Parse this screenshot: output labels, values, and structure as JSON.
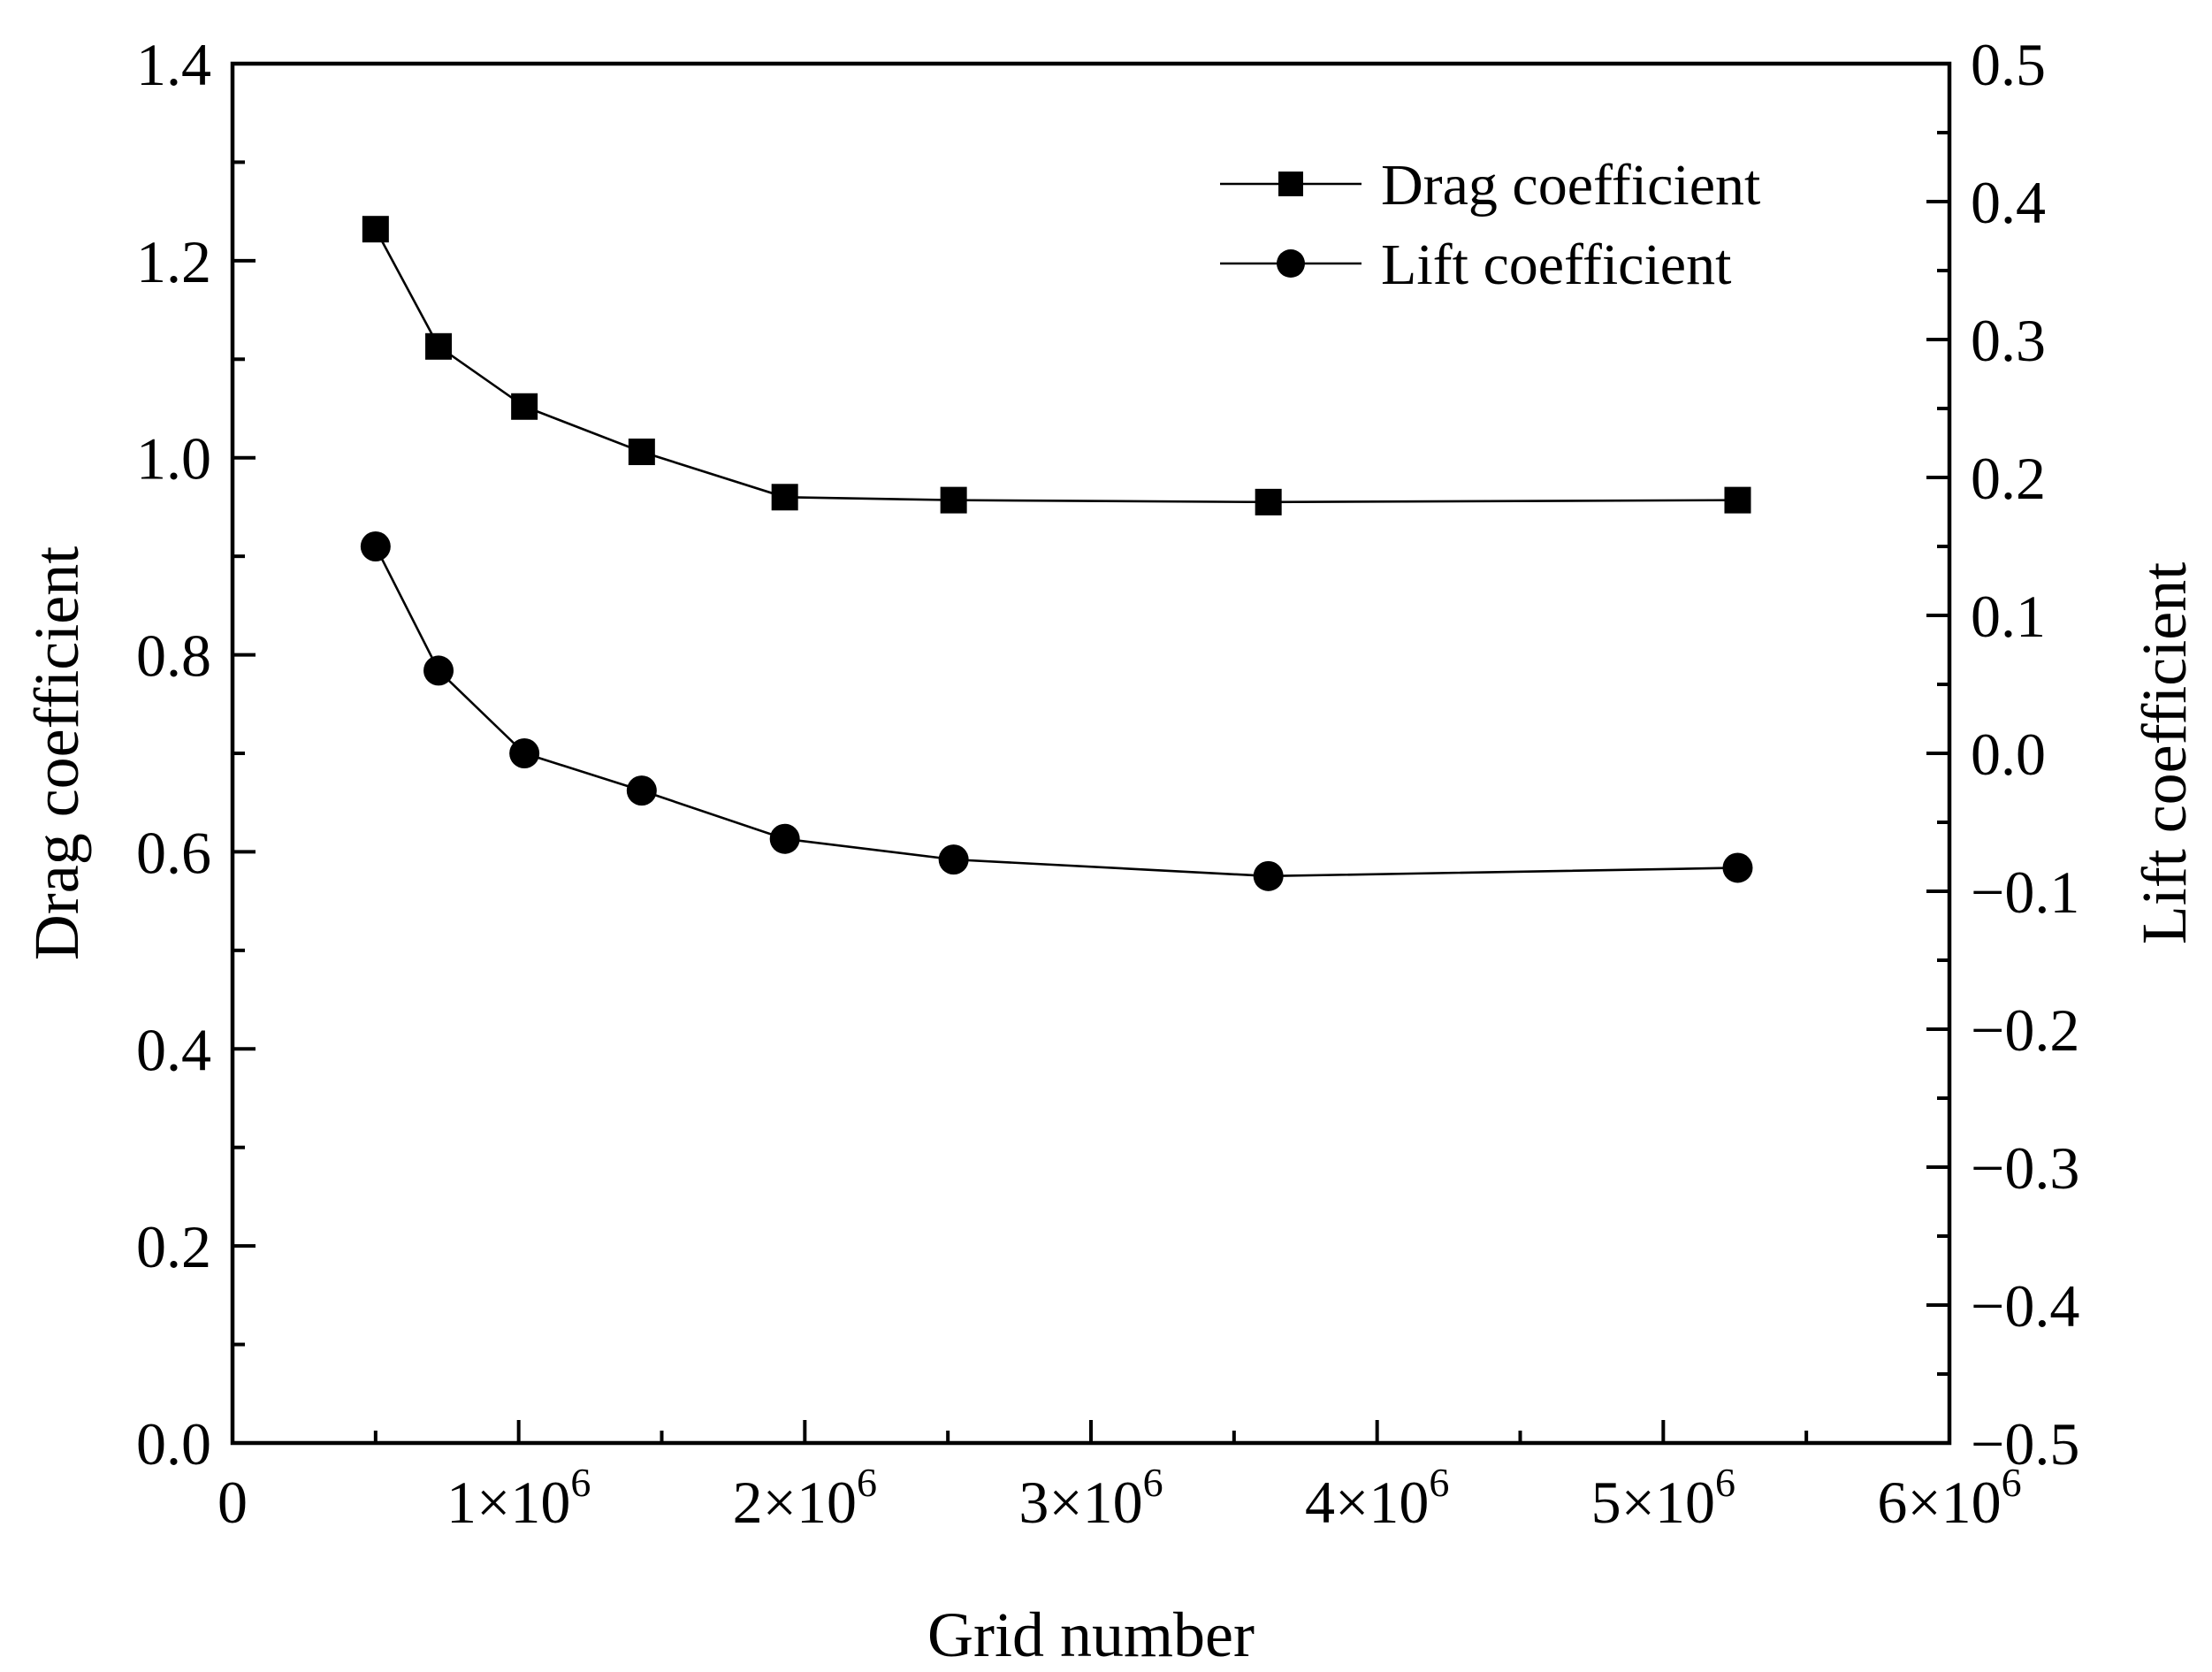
{
  "chart_data": {
    "type": "line",
    "xlabel": "Grid number",
    "ylabel": "Drag coefficient",
    "y2label": "Lift coefficient",
    "xlim": [
      0,
      6000000
    ],
    "ylim": [
      0.0,
      1.4
    ],
    "y2lim": [
      -0.5,
      0.5
    ],
    "x_ticks": [
      {
        "value": 0,
        "label": "0"
      },
      {
        "value": 1000000,
        "base": "1×10",
        "exp": "6"
      },
      {
        "value": 2000000,
        "base": "2×10",
        "exp": "6"
      },
      {
        "value": 3000000,
        "base": "3×10",
        "exp": "6"
      },
      {
        "value": 4000000,
        "base": "4×10",
        "exp": "6"
      },
      {
        "value": 5000000,
        "base": "5×10",
        "exp": "6"
      },
      {
        "value": 6000000,
        "base": "6×10",
        "exp": "6"
      }
    ],
    "y_ticks": [
      "0.0",
      "0.2",
      "0.4",
      "0.6",
      "0.8",
      "1.0",
      "1.2",
      "1.4"
    ],
    "y2_ticks": [
      "−0.5",
      "−0.4",
      "−0.3",
      "−0.2",
      "−0.1",
      "0.0",
      "0.1",
      "0.2",
      "0.3",
      "0.4",
      "0.5"
    ],
    "legend_position": "top-right",
    "series": [
      {
        "name": "Drag coefficient",
        "axis": "left",
        "marker": "square",
        "x": [
          500000,
          720000,
          1020000,
          1430000,
          1930000,
          2520000,
          3620000,
          5260000
        ],
        "y": [
          1.232,
          1.113,
          1.052,
          1.006,
          0.96,
          0.957,
          0.955,
          0.957
        ]
      },
      {
        "name": "Lift coefficient",
        "axis": "right",
        "marker": "circle",
        "x": [
          500000,
          720000,
          1020000,
          1430000,
          1930000,
          2520000,
          3620000,
          5260000
        ],
        "y": [
          0.15,
          0.06,
          0.0,
          -0.027,
          -0.062,
          -0.077,
          -0.089,
          -0.083
        ]
      }
    ]
  }
}
